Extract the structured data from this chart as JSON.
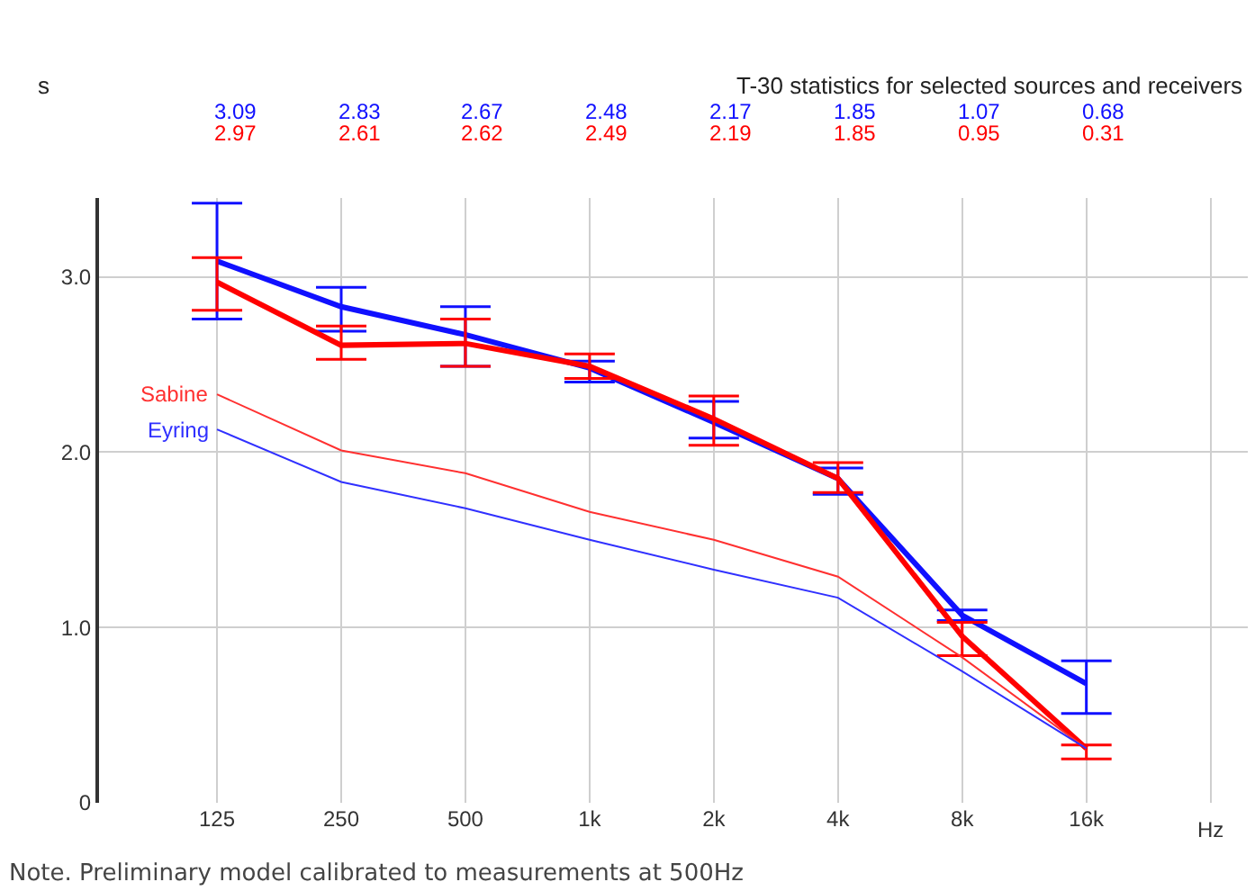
{
  "chart_data": {
    "type": "line",
    "title": "T-30 statistics for selected sources and receivers",
    "ylabel": "s",
    "xlabel": "Hz",
    "categories": [
      "125",
      "250",
      "500",
      "1k",
      "2k",
      "4k",
      "8k",
      "16k"
    ],
    "series": [
      {
        "color": "#1010ff",
        "values": [
          3.09,
          2.83,
          2.67,
          2.48,
          2.17,
          1.85,
          1.07,
          0.68
        ],
        "value_labels": [
          "3.09",
          "2.83",
          "2.67",
          "2.48",
          "2.17",
          "1.85",
          "1.07",
          "0.68"
        ],
        "errors": [
          [
            2.76,
            3.42
          ],
          [
            2.69,
            2.94
          ],
          [
            2.49,
            2.83
          ],
          [
            2.4,
            2.52
          ],
          [
            2.08,
            2.29
          ],
          [
            1.76,
            1.91
          ],
          [
            1.04,
            1.1
          ],
          [
            0.51,
            0.81
          ]
        ]
      },
      {
        "color": "#ff0000",
        "values": [
          2.97,
          2.61,
          2.62,
          2.49,
          2.19,
          1.85,
          0.95,
          0.31
        ],
        "value_labels": [
          "2.97",
          "2.61",
          "2.62",
          "2.49",
          "2.19",
          "1.85",
          "0.95",
          "0.31"
        ],
        "errors": [
          [
            2.81,
            3.11
          ],
          [
            2.53,
            2.72
          ],
          [
            2.49,
            2.76
          ],
          [
            2.42,
            2.56
          ],
          [
            2.04,
            2.32
          ],
          [
            1.77,
            1.94
          ],
          [
            0.84,
            1.03
          ],
          [
            0.25,
            0.33
          ]
        ]
      },
      {
        "name": "Sabine",
        "color": "#ff3030",
        "values": [
          2.33,
          2.01,
          1.88,
          1.66,
          1.5,
          1.29,
          0.83,
          0.31
        ]
      },
      {
        "name": "Eyring",
        "color": "#3030ff",
        "values": [
          2.13,
          1.83,
          1.68,
          1.5,
          1.33,
          1.17,
          0.75,
          0.31
        ]
      }
    ],
    "ylim": [
      0,
      3.45
    ],
    "yticks": [
      0,
      {
        "value": 1,
        "label": "1.0"
      },
      {
        "value": 2,
        "label": "2.0"
      },
      {
        "value": 3,
        "label": "3.0"
      }
    ],
    "grid": true,
    "marker": "none",
    "legend": false,
    "annotations": [
      "Note. Preliminary model calibrated to measurements at 500Hz"
    ]
  }
}
